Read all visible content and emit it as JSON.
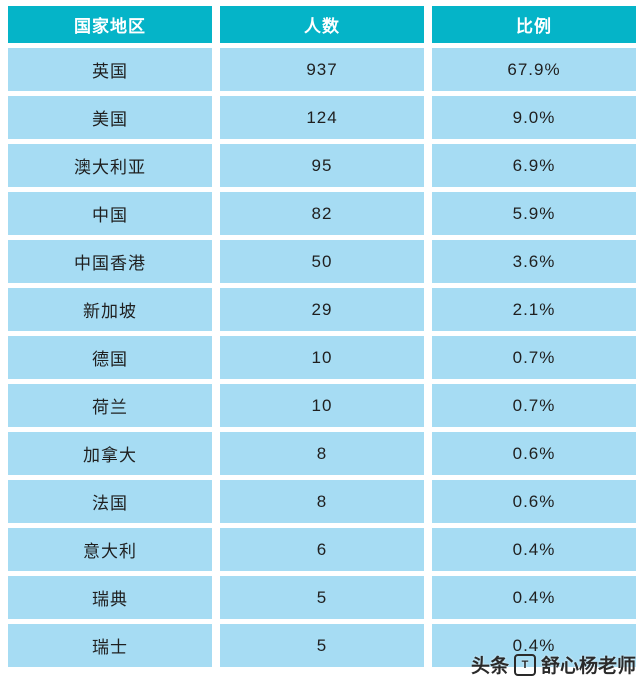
{
  "chart_data": {
    "type": "table",
    "title": "",
    "columns": [
      "国家地区",
      "人数",
      "比例"
    ],
    "rows": [
      [
        "英国",
        "937",
        "67.9%"
      ],
      [
        "美国",
        "124",
        "9.0%"
      ],
      [
        "澳大利亚",
        "95",
        "6.9%"
      ],
      [
        "中国",
        "82",
        "5.9%"
      ],
      [
        "中国香港",
        "50",
        "3.6%"
      ],
      [
        "新加坡",
        "29",
        "2.1%"
      ],
      [
        "德国",
        "10",
        "0.7%"
      ],
      [
        "荷兰",
        "10",
        "0.7%"
      ],
      [
        "加拿大",
        "8",
        "0.6%"
      ],
      [
        "法国",
        "8",
        "0.6%"
      ],
      [
        "意大利",
        "6",
        "0.4%"
      ],
      [
        "瑞典",
        "5",
        "0.4%"
      ],
      [
        "瑞士",
        "5",
        "0.4%"
      ]
    ],
    "layout": {
      "grid": "off",
      "cell_separator": "white-gaps",
      "text_align": "center"
    }
  },
  "watermark": {
    "brand": "头条",
    "logo_glyph": "T",
    "author": "舒心杨老师"
  },
  "colors": {
    "header_bg": "#05b4c8",
    "header_text": "#ffffff",
    "cell_bg": "#a6dcf3",
    "cell_text": "#1f1f1f"
  }
}
